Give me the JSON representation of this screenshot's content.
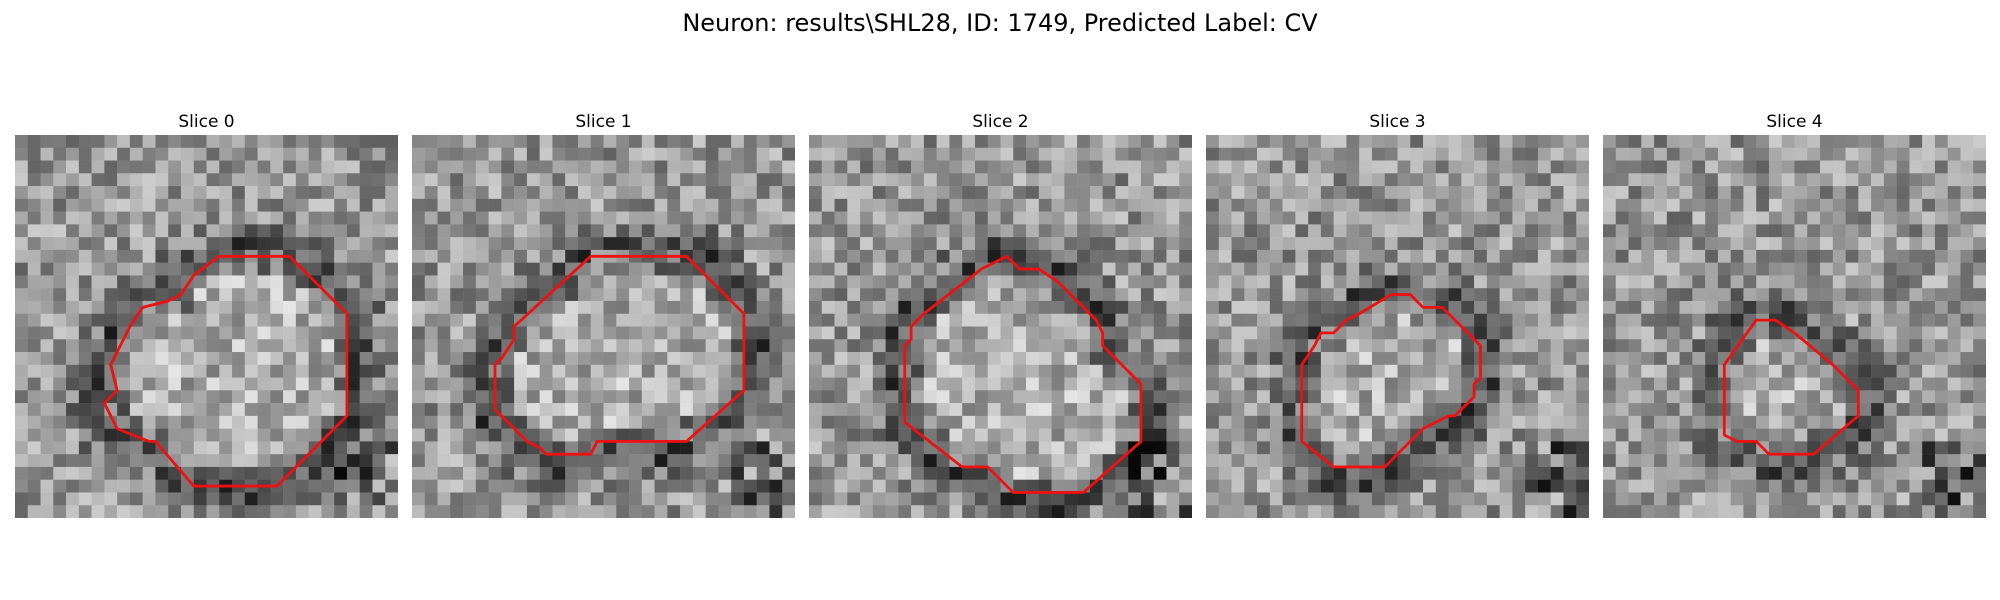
{
  "title": "Neuron: results\\SHL28, ID: 1749, Predicted Label: CV",
  "contour_color": "#ee1111",
  "slices": [
    {
      "label": "Slice 0"
    },
    {
      "label": "Slice 1"
    },
    {
      "label": "Slice 2"
    },
    {
      "label": "Slice 3"
    },
    {
      "label": "Slice 4"
    }
  ]
}
